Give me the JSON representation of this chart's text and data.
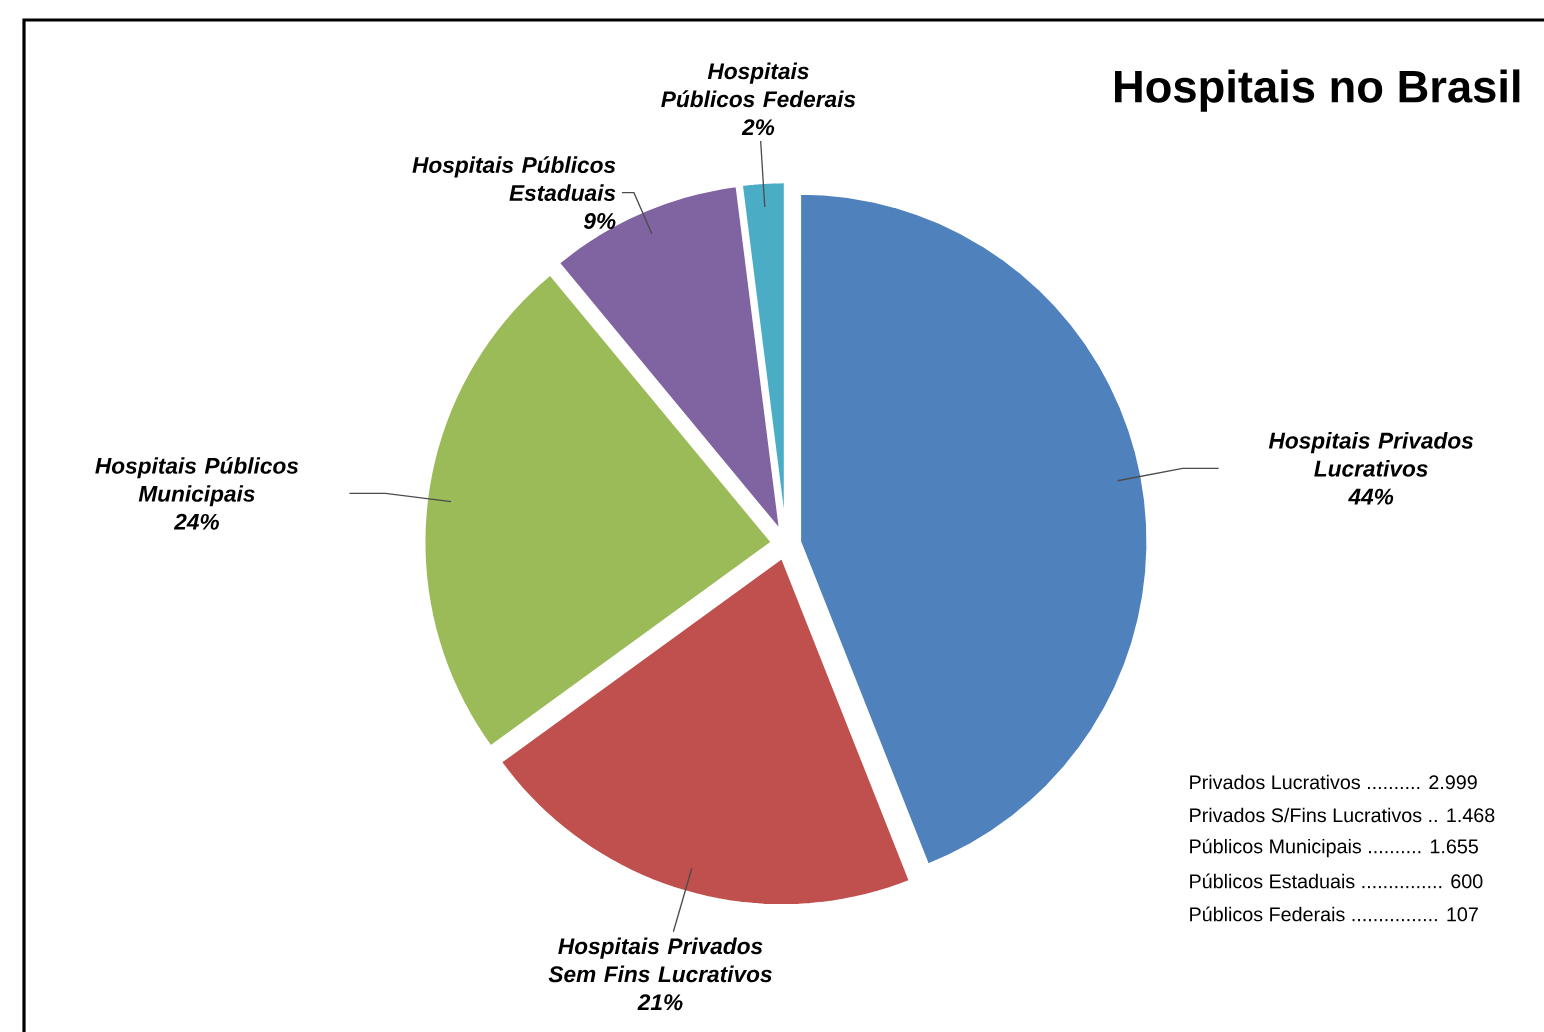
{
  "chart_data": {
    "type": "pie",
    "title": "Hospitais no Brasil",
    "categories": [
      "Hospitais Privados Lucrativos",
      "Hospitais Privados Sem Fins Lucrativos",
      "Hospitais Públicos Municipais",
      "Hospitais Públicos Estaduais",
      "Hospitais Públicos Federais"
    ],
    "values": [
      44,
      21,
      24,
      9,
      2
    ],
    "value_labels": [
      "44%",
      "21%",
      "24%",
      "9%",
      "2%"
    ],
    "colors": [
      "#4f81bd",
      "#c0504d",
      "#9bbb59",
      "#8064a2",
      "#4bacc6"
    ],
    "annotations": [
      "Privados Lucrativos .......... 2.999",
      "Privados S/Fins Lucrativos .. 1.468",
      "Públicos Municipais .......... 1.655",
      "Públicos Estaduais ............... 600",
      "Públicos Federais ................ 107"
    ]
  }
}
